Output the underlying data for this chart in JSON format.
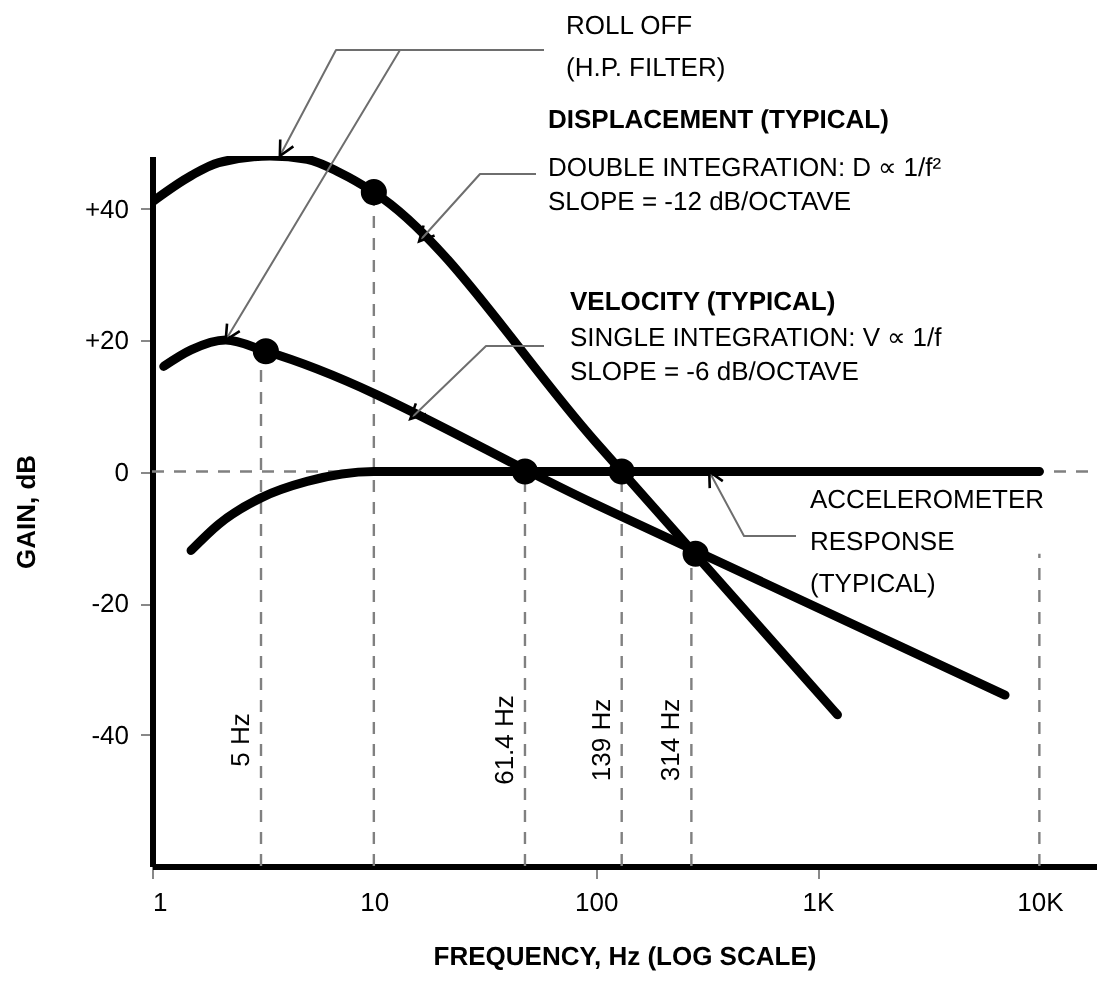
{
  "chart_data": {
    "type": "line",
    "xlabel": "FREQUENCY, Hz (LOG SCALE)",
    "ylabel": "GAIN, dB",
    "log": "x",
    "xlim": [
      1,
      18000
    ],
    "ylim": [
      -60,
      48
    ],
    "xticks": [
      1,
      10,
      100,
      {
        "value": 1000,
        "label": "1K"
      },
      {
        "value": 10000,
        "label": "10K"
      }
    ],
    "yticks": [
      {
        "value": 40,
        "label": "+40"
      },
      {
        "value": 20,
        "label": "+20"
      },
      0,
      -20,
      -40
    ],
    "grid": false,
    "line_style": "solid",
    "series": [
      {
        "color": "#000000",
        "x": [
          1,
          1.5,
          2,
          3.4,
          5,
          7,
          10,
          100,
          1230
        ],
        "values": [
          41,
          45,
          47,
          48,
          47.5,
          45.5,
          42.5,
          4.5,
          -37
        ]
      },
      {
        "color": "#000000",
        "x": [
          1.13,
          1.5,
          2.15,
          3.26,
          100,
          7000
        ],
        "values": [
          16,
          18.5,
          20,
          18.3,
          -5,
          -34
        ]
      },
      {
        "color": "#000000",
        "x": [
          1.5,
          2,
          3.1,
          5,
          10,
          100,
          10000
        ],
        "values": [
          -12,
          -8,
          -4,
          -1.5,
          0,
          0,
          0
        ]
      },
      {
        "type": "scatter",
        "marker": "circle",
        "color": "#000000",
        "x": [
          10,
          3.26,
          48,
          131,
          282
        ],
        "values": [
          42.5,
          18.3,
          0,
          0,
          -12.5
        ]
      }
    ],
    "ref_lines": [
      {
        "axis": "y",
        "value": 0,
        "color": "#808080",
        "line_style": "dashed"
      },
      {
        "axis": "x",
        "value": 3.1,
        "label": "5 Hz",
        "color": "#808080",
        "line_style": "dashed"
      },
      {
        "axis": "x",
        "value": 10,
        "color": "#808080",
        "line_style": "dashed"
      },
      {
        "axis": "x",
        "value": 48,
        "label": "61.4 Hz",
        "color": "#808080",
        "line_style": "dashed"
      },
      {
        "axis": "x",
        "value": 131,
        "label": "139 Hz",
        "color": "#808080",
        "line_style": "dashed"
      },
      {
        "axis": "x",
        "value": 270,
        "label": "314 Hz",
        "color": "#808080",
        "line_style": "dashed"
      },
      {
        "axis": "x",
        "value": 10000,
        "color": "#808080",
        "line_style": "dashed"
      }
    ],
    "annotations": [
      {
        "text": "ROLL OFF\n(H.P. FILTER)",
        "x": 3.77,
        "y": 48
      },
      "DISPLACEMENT (TYPICAL)",
      {
        "text": "DOUBLE INTEGRATION:  D ∝ 1/f²\nSLOPE = -12 dB/OCTAVE",
        "x": 16,
        "y": 35
      },
      "VELOCITY (TYPICAL)",
      {
        "text": "SINGLE INTEGRATION:  V ∝ 1/f\nSLOPE = -6 dB/OCTAVE",
        "x": 14.6,
        "y": 8
      },
      {
        "text": "ACCELEROMETER\nRESPONSE\n(TYPICAL)",
        "x": 325,
        "y": 0
      }
    ]
  }
}
